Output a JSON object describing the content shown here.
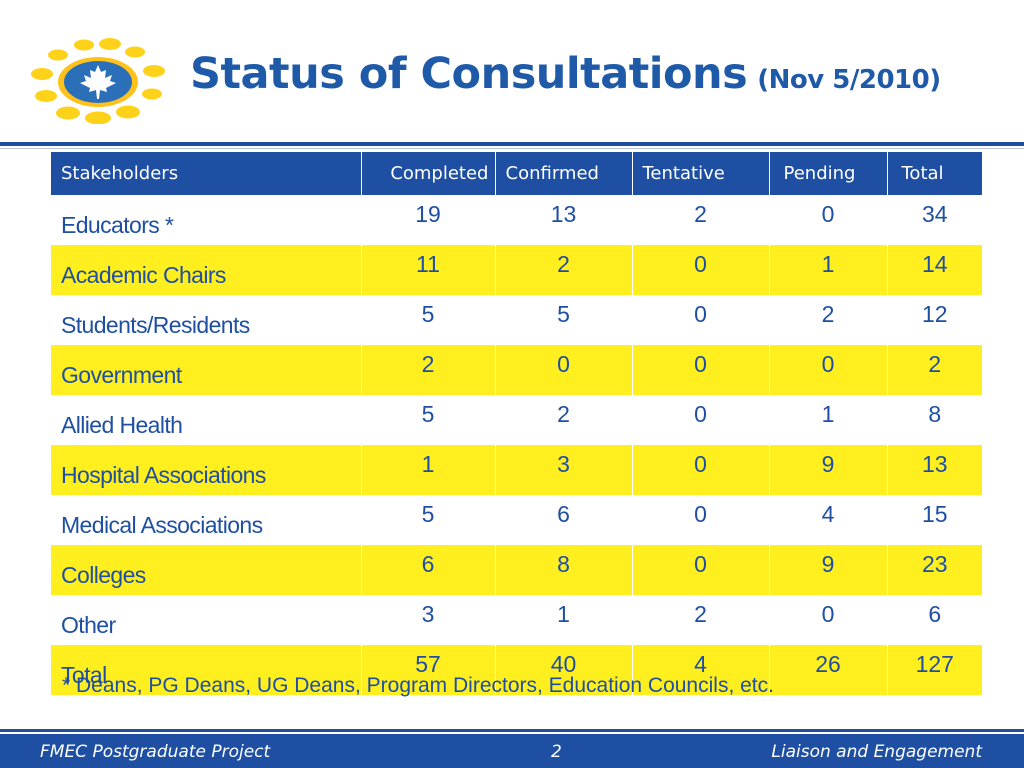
{
  "header": {
    "title": "Status of Consultations",
    "date": "(Nov 5/2010)"
  },
  "colors": {
    "blue": "#1e4fa3",
    "yellow_row": "#ffef1e",
    "logo_yellow": "#ffd21a",
    "logo_blue": "#2a6fb8"
  },
  "logo": {
    "icon": "maple-leaf-sun-logo"
  },
  "table": {
    "headers": [
      "Stakeholders",
      "Completed",
      "Confirmed",
      "Tentative",
      "Pending",
      "Total"
    ],
    "rows": [
      [
        "Educators *",
        "19",
        "13",
        "2",
        "0",
        "34"
      ],
      [
        "Academic Chairs",
        "11",
        "2",
        "0",
        "1",
        "14"
      ],
      [
        "Students/Residents",
        "5",
        "5",
        "0",
        "2",
        "12"
      ],
      [
        "Government",
        "2",
        "0",
        "0",
        "0",
        "2"
      ],
      [
        "Allied Health",
        "5",
        "2",
        "0",
        "1",
        "8"
      ],
      [
        "Hospital Associations",
        "1",
        "3",
        "0",
        "9",
        "13"
      ],
      [
        "Medical Associations",
        "5",
        "6",
        "0",
        "4",
        "15"
      ],
      [
        "Colleges",
        "6",
        "8",
        "0",
        "9",
        "23"
      ],
      [
        "Other",
        "3",
        "1",
        "2",
        "0",
        "6"
      ],
      [
        "Total",
        "57",
        "40",
        "4",
        "26",
        "127"
      ]
    ]
  },
  "footnote": "* Deans, PG Deans, UG Deans, Program Directors, Education Councils, etc.",
  "footer": {
    "left": "FMEC Postgraduate Project",
    "page": "2",
    "right": "Liaison and Engagement"
  }
}
